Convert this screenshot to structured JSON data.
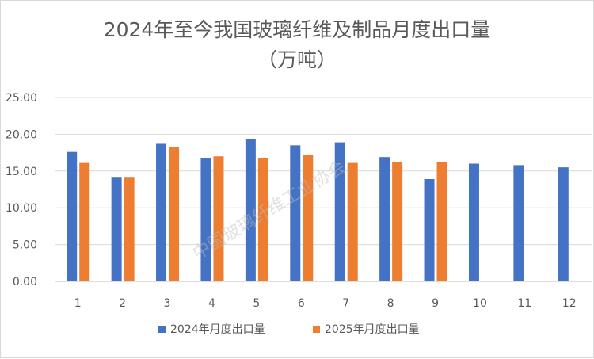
{
  "chart_data": {
    "type": "bar",
    "title": "2024年至今我国玻璃纤维及制品月度出口量",
    "subtitle": "（万吨）",
    "categories": [
      "1",
      "2",
      "3",
      "4",
      "5",
      "6",
      "7",
      "8",
      "9",
      "10",
      "11",
      "12"
    ],
    "series": [
      {
        "name": "2024年月度出口量",
        "color": "#4472c4",
        "values": [
          17.6,
          14.2,
          18.7,
          16.8,
          19.4,
          18.5,
          18.9,
          16.9,
          13.9,
          16.0,
          15.8,
          15.5
        ]
      },
      {
        "name": "2025年月度出口量",
        "color": "#ed7d31",
        "values": [
          16.1,
          14.2,
          18.3,
          17.0,
          16.8,
          17.2,
          16.1,
          16.2,
          16.2,
          null,
          null,
          null
        ]
      }
    ],
    "ylim": [
      0,
      25
    ],
    "yticks": [
      "0.00",
      "5.00",
      "10.00",
      "15.00",
      "20.00",
      "25.00"
    ],
    "grid": true,
    "legend_position": "bottom",
    "watermark": "中国玻璃纤维工业协会"
  }
}
